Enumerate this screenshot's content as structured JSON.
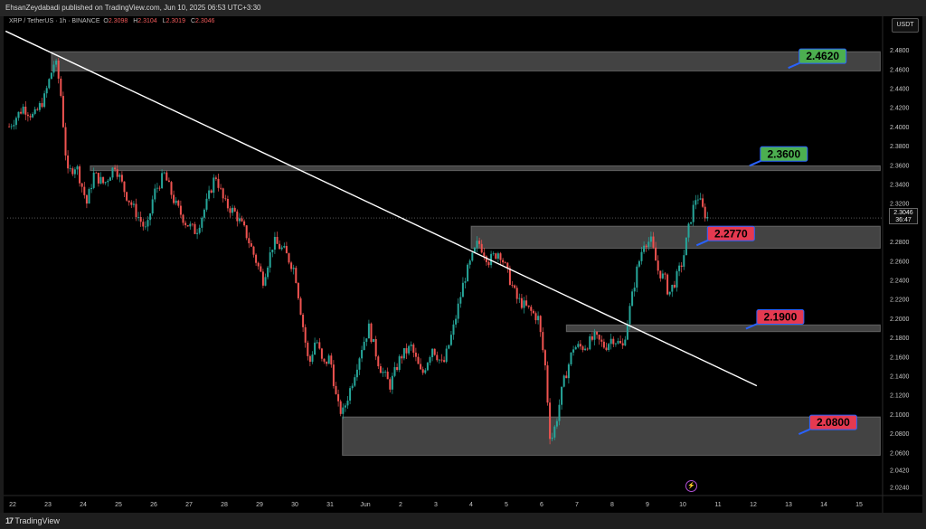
{
  "header": {
    "publisher_line": "EhsanZeydabadi published on TradingView.com, Jun 10, 2025 06:53 UTC+3:30"
  },
  "symbol": {
    "name": "XRP / TetherUS · 1h · BINANCE",
    "open_label": "O",
    "open": "2.3098",
    "high_label": "H",
    "high": "2.3104",
    "low_label": "L",
    "low": "2.3019",
    "close_label": "C",
    "close": "2.3046"
  },
  "currency_button": "USDT",
  "last_price": {
    "price": "2.3046",
    "countdown": "36:47"
  },
  "footer": {
    "brand": "TradingView",
    "logo_mark": "17"
  },
  "colors": {
    "up": "#26a69a",
    "down": "#ef5350",
    "trendline": "#ffffff",
    "zone": "#7a7a7a",
    "label_green": "#4caf50",
    "label_red": "#e53950",
    "label_border": "#2962ff"
  },
  "chart_data": {
    "type": "candlestick",
    "ylim": [
      2.015,
      2.515
    ],
    "y_ticks": [
      "2.4800",
      "2.4600",
      "2.4400",
      "2.4200",
      "2.4000",
      "2.3800",
      "2.3600",
      "2.3400",
      "2.3200",
      "2.2800",
      "2.2600",
      "2.2400",
      "2.2200",
      "2.2000",
      "2.1800",
      "2.1600",
      "2.1400",
      "2.1200",
      "2.1000",
      "2.0800",
      "2.0600",
      "2.0420",
      "2.0240"
    ],
    "x_ticks": [
      {
        "label": "22",
        "day": 0
      },
      {
        "label": "23",
        "day": 1
      },
      {
        "label": "24",
        "day": 2
      },
      {
        "label": "25",
        "day": 3
      },
      {
        "label": "26",
        "day": 4
      },
      {
        "label": "27",
        "day": 5
      },
      {
        "label": "28",
        "day": 6
      },
      {
        "label": "29",
        "day": 7
      },
      {
        "label": "30",
        "day": 8
      },
      {
        "label": "31",
        "day": 9
      },
      {
        "label": "Jun",
        "day": 10
      },
      {
        "label": "2",
        "day": 11
      },
      {
        "label": "3",
        "day": 12
      },
      {
        "label": "4",
        "day": 13
      },
      {
        "label": "5",
        "day": 14
      },
      {
        "label": "6",
        "day": 15
      },
      {
        "label": "7",
        "day": 16
      },
      {
        "label": "8",
        "day": 17
      },
      {
        "label": "9",
        "day": 18
      },
      {
        "label": "10",
        "day": 19
      },
      {
        "label": "11",
        "day": 20
      },
      {
        "label": "12",
        "day": 21
      },
      {
        "label": "13",
        "day": 22
      },
      {
        "label": "14",
        "day": 23
      },
      {
        "label": "15",
        "day": 24
      }
    ],
    "close_path": [
      [
        -0.1,
        2.4
      ],
      [
        0.3,
        2.42
      ],
      [
        0.6,
        2.41
      ],
      [
        0.9,
        2.43
      ],
      [
        1.2,
        2.47
      ],
      [
        1.35,
        2.44
      ],
      [
        1.55,
        2.35
      ],
      [
        1.8,
        2.36
      ],
      [
        2.1,
        2.32
      ],
      [
        2.3,
        2.35
      ],
      [
        2.6,
        2.34
      ],
      [
        2.9,
        2.36
      ],
      [
        3.2,
        2.33
      ],
      [
        3.5,
        2.31
      ],
      [
        3.8,
        2.29
      ],
      [
        4.0,
        2.33
      ],
      [
        4.3,
        2.35
      ],
      [
        4.6,
        2.32
      ],
      [
        4.9,
        2.3
      ],
      [
        5.2,
        2.29
      ],
      [
        5.5,
        2.32
      ],
      [
        5.75,
        2.35
      ],
      [
        6.0,
        2.32
      ],
      [
        6.3,
        2.31
      ],
      [
        6.6,
        2.29
      ],
      [
        6.9,
        2.26
      ],
      [
        7.1,
        2.24
      ],
      [
        7.4,
        2.28
      ],
      [
        7.7,
        2.27
      ],
      [
        8.0,
        2.25
      ],
      [
        8.2,
        2.2
      ],
      [
        8.4,
        2.15
      ],
      [
        8.6,
        2.18
      ],
      [
        8.8,
        2.15
      ],
      [
        9.0,
        2.16
      ],
      [
        9.2,
        2.11
      ],
      [
        9.35,
        2.1
      ],
      [
        9.6,
        2.13
      ],
      [
        9.9,
        2.17
      ],
      [
        10.1,
        2.19
      ],
      [
        10.4,
        2.15
      ],
      [
        10.7,
        2.13
      ],
      [
        11.0,
        2.16
      ],
      [
        11.3,
        2.17
      ],
      [
        11.6,
        2.14
      ],
      [
        11.9,
        2.17
      ],
      [
        12.2,
        2.15
      ],
      [
        12.5,
        2.19
      ],
      [
        12.8,
        2.24
      ],
      [
        13.0,
        2.26
      ],
      [
        13.2,
        2.28
      ],
      [
        13.5,
        2.26
      ],
      [
        13.8,
        2.27
      ],
      [
        14.0,
        2.25
      ],
      [
        14.3,
        2.22
      ],
      [
        14.6,
        2.21
      ],
      [
        14.9,
        2.2
      ],
      [
        15.1,
        2.15
      ],
      [
        15.25,
        2.07
      ],
      [
        15.4,
        2.09
      ],
      [
        15.6,
        2.13
      ],
      [
        15.9,
        2.17
      ],
      [
        16.2,
        2.17
      ],
      [
        16.5,
        2.18
      ],
      [
        16.8,
        2.17
      ],
      [
        17.0,
        2.18
      ],
      [
        17.3,
        2.17
      ],
      [
        17.5,
        2.21
      ],
      [
        17.7,
        2.25
      ],
      [
        17.9,
        2.28
      ],
      [
        18.1,
        2.28
      ],
      [
        18.3,
        2.25
      ],
      [
        18.5,
        2.24
      ],
      [
        18.6,
        2.225
      ],
      [
        18.8,
        2.24
      ],
      [
        19.0,
        2.26
      ],
      [
        19.2,
        2.3
      ],
      [
        19.4,
        2.33
      ],
      [
        19.6,
        2.31
      ],
      [
        19.7,
        2.305
      ]
    ],
    "trendline": {
      "from": {
        "day": -0.2,
        "price": 2.4995
      },
      "to": {
        "day": 21.1,
        "price": 2.1295
      }
    },
    "zones": [
      {
        "day_start": 1.1,
        "day_end": 24.6,
        "price_low": 2.458,
        "price_high": 2.478
      },
      {
        "day_start": 2.2,
        "day_end": 24.6,
        "price_low": 2.354,
        "price_high": 2.359
      },
      {
        "day_start": 13.0,
        "day_end": 24.6,
        "price_low": 2.273,
        "price_high": 2.296
      },
      {
        "day_start": 15.7,
        "day_end": 24.6,
        "price_low": 2.186,
        "price_high": 2.193
      },
      {
        "day_start": 9.35,
        "day_end": 24.6,
        "price_low": 2.057,
        "price_high": 2.097
      }
    ],
    "labels": [
      {
        "text": "2.4620",
        "price": 2.462,
        "day": 22.3,
        "fill": "green"
      },
      {
        "text": "2.3600",
        "price": 2.36,
        "day": 21.2,
        "fill": "green"
      },
      {
        "text": "2.2770",
        "price": 2.277,
        "day": 19.7,
        "fill": "red"
      },
      {
        "text": "2.1900",
        "price": 2.19,
        "day": 21.1,
        "fill": "red"
      },
      {
        "text": "2.0800",
        "price": 2.08,
        "day": 22.6,
        "fill": "red"
      }
    ],
    "last_price_line": 2.3046
  }
}
